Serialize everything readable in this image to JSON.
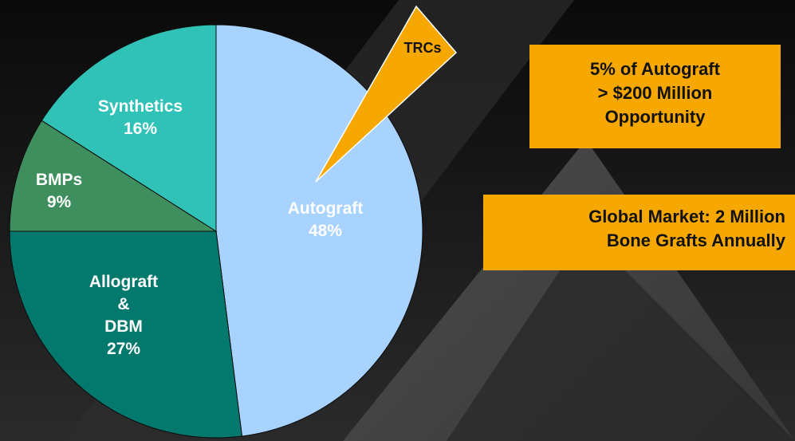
{
  "chart_data": {
    "type": "pie",
    "slices": [
      {
        "name": "Autograft",
        "value": 48,
        "value_text": "48%",
        "color": "#a9d3ff"
      },
      {
        "name": "Allograft & DBM",
        "label_lines": [
          "Allograft",
          "&",
          "DBM"
        ],
        "value": 27,
        "value_text": "27%",
        "color": "#03786d"
      },
      {
        "name": "BMPs",
        "value": 9,
        "value_text": "9%",
        "color": "#3f8f5e"
      },
      {
        "name": "Synthetics",
        "value": 16,
        "value_text": "16%",
        "color": "#30c2b6"
      }
    ],
    "exploded": {
      "name": "TRCs",
      "color": "#f7a800"
    }
  },
  "callouts": {
    "autograft_opportunity": [
      "5% of Autograft",
      "> $200 Million",
      "Opportunity"
    ],
    "global_market": [
      "Global Market: 2 Million",
      "Bone Grafts Annually"
    ]
  },
  "colors": {
    "background": "#1c1c1c",
    "accent": "#f7a800",
    "decor_triangle": "#4a4a4a"
  }
}
